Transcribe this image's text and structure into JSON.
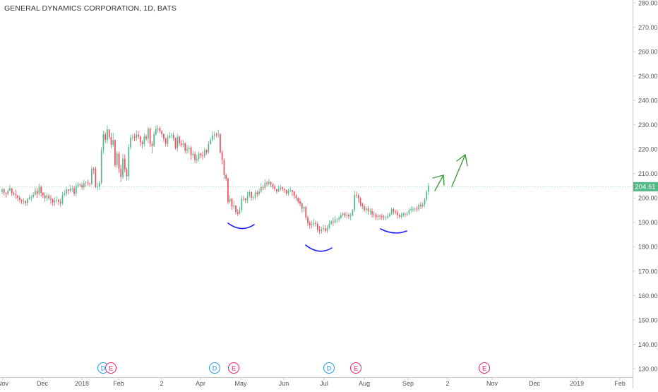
{
  "chart_data": {
    "type": "candlestick",
    "title": "GENERAL DYNAMICS CORPORATION, 1D, BATS",
    "ylim": [
      125,
      280
    ],
    "y_ticks": [
      "280.00",
      "270.00",
      "260.00",
      "250.00",
      "240.00",
      "230.00",
      "220.00",
      "210.00",
      "200.00",
      "190.00",
      "180.00",
      "170.00",
      "160.00",
      "150.00",
      "140.00",
      "130.00"
    ],
    "x_ticks": [
      "Nov",
      "Dec",
      "2018",
      "Feb",
      "2",
      "Apr",
      "May",
      "Jun",
      "Jul",
      "Aug",
      "Sep",
      "2",
      "Nov",
      "Dec",
      "2019",
      "Feb"
    ],
    "last_price": "204.61",
    "grid": false,
    "colors": {
      "up": "#53b987",
      "down": "#eb4d5c",
      "annotation_curve": "#1a1aff",
      "annotation_arrow": "#3d9b3d",
      "price_tag": "#53b987"
    },
    "series": [
      {
        "close": [
          203.5,
          202.0,
          201.6,
          203.0,
          204.0,
          202.0,
          201.5,
          201.1,
          200.1,
          199.2,
          198.7,
          198.7,
          197.9,
          199.5,
          200.2,
          200.4,
          201.3,
          202.9,
          201.6,
          204.5,
          202.1,
          201.1,
          199.9,
          201.0,
          199.8,
          199.4,
          198.2,
          198.9,
          199.2,
          198.4,
          197.8,
          201.1,
          201.7,
          203.5,
          202.9,
          203.9,
          203.9,
          201.8,
          204.9,
          205.6,
          205.3,
          204.3,
          206.0,
          206.3,
          206.0,
          205.8,
          212.0,
          211.9,
          204.4,
          204.7,
          206.2,
          219.7,
          226.1,
          223.8,
          228.1,
          225.0,
          221.8,
          223.8,
          213.5,
          218.2,
          212.0,
          208.6,
          216.1,
          211.7,
          208.8,
          220.8,
          224.8,
          225.0,
          224.7,
          226.0,
          225.1,
          222.9,
          222.1,
          225.2,
          224.3,
          228.4,
          222.2,
          221.3,
          226.1,
          228.2,
          228.6,
          227.4,
          226.2,
          224.3,
          222.2,
          224.9,
          225.6,
          225.8,
          224.5,
          220.5,
          225.1,
          222.4,
          221.7,
          222.4,
          219.4,
          220.0,
          220.6,
          217.5,
          218.1,
          215.5,
          216.0,
          218.2,
          217.5,
          217.2,
          219.6,
          218.8,
          222.1,
          223.8,
          225.6,
          226.0,
          225.8,
          226.1,
          218.7,
          215.6,
          209.3,
          207.9,
          198.3,
          199.6,
          196.5,
          196.9,
          194.2,
          193.5,
          195.1,
          199.8,
          199.6,
          199.1,
          200.8,
          202.4,
          200.1,
          200.2,
          202.2,
          201.6,
          202.6,
          204.5,
          204.1,
          206.2,
          205.9,
          206.6,
          205.5,
          204.6,
          203.7,
          202.7,
          203.8,
          204.3,
          203.7,
          203.3,
          201.8,
          203.1,
          203.2,
          202.6,
          201.0,
          200.0,
          198.6,
          197.7,
          195.6,
          196.3,
          191.9,
          189.8,
          188.8,
          189.2,
          189.8,
          189.4,
          186.9,
          186.5,
          187.1,
          187.6,
          186.5,
          187.8,
          189.5,
          190.3,
          190.0,
          191.2,
          191.3,
          191.9,
          193.0,
          193.6,
          192.7,
          193.1,
          192.5,
          192.7,
          195.1,
          201.2,
          201.1,
          199.9,
          197.8,
          196.6,
          195.0,
          195.7,
          194.6,
          194.6,
          193.3,
          193.1,
          192.2,
          192.7,
          192.6,
          192.2,
          191.9,
          191.9,
          192.5,
          193.3,
          195.4,
          194.4,
          194.1,
          193.0,
          192.3,
          192.9,
          193.5,
          193.2,
          193.5,
          195.1,
          195.5,
          195.5,
          195.6,
          195.3,
          197.2,
          196.5,
          197.3,
          199.4,
          202.5,
          205.0
        ],
        "high": [
          204.0,
          204.1,
          202.3,
          204.0,
          205.4,
          202.9,
          202.6,
          203.4,
          201.1,
          200.9,
          199.5,
          199.9,
          199.2,
          200.1,
          201.2,
          201.1,
          202.4,
          204.5,
          204.0,
          205.9,
          205.1,
          202.4,
          202.2,
          202.0,
          201.7,
          201.2,
          199.8,
          200.3,
          200.8,
          199.8,
          199.6,
          202.5,
          203.0,
          204.6,
          203.6,
          205.4,
          205.1,
          204.9,
          206.3,
          206.5,
          206.1,
          206.3,
          207.4,
          207.0,
          207.4,
          206.3,
          213.0,
          212.6,
          212.9,
          206.3,
          207.2,
          220.9,
          227.6,
          227.0,
          229.7,
          228.0,
          226.7,
          226.8,
          223.9,
          219.2,
          219.0,
          213.6,
          218.1,
          217.9,
          212.5,
          222.0,
          226.0,
          226.1,
          226.5,
          227.7,
          227.5,
          225.6,
          223.6,
          226.4,
          226.0,
          229.2,
          228.9,
          223.3,
          227.3,
          229.8,
          229.9,
          229.3,
          227.9,
          226.5,
          224.8,
          225.9,
          227.1,
          226.7,
          226.9,
          224.8,
          226.3,
          225.6,
          223.8,
          223.8,
          222.9,
          221.7,
          221.6,
          221.2,
          219.3,
          219.1,
          217.7,
          219.1,
          218.5,
          219.0,
          220.6,
          220.0,
          223.3,
          224.8,
          227.4,
          227.2,
          226.8,
          228.0,
          226.6,
          219.5,
          216.2,
          210.0,
          208.4,
          201.1,
          200.0,
          198.8,
          195.6,
          195.3,
          196.3,
          201.1,
          200.9,
          200.1,
          202.6,
          203.2,
          202.7,
          200.9,
          203.3,
          203.1,
          204.0,
          206.1,
          205.2,
          207.7,
          207.0,
          207.8,
          206.8,
          206.0,
          205.6,
          203.6,
          205.0,
          205.4,
          204.7,
          204.0,
          203.5,
          203.8,
          204.6,
          203.3,
          202.8,
          201.6,
          200.3,
          199.8,
          198.3,
          196.7,
          196.8,
          192.8,
          190.5,
          190.6,
          191.4,
          190.7,
          190.3,
          188.5,
          188.2,
          189.1,
          188.8,
          188.8,
          190.9,
          190.8,
          192.0,
          192.6,
          191.7,
          192.5,
          194.1,
          194.3,
          194.2,
          194.3,
          193.9,
          193.9,
          195.4,
          203.0,
          202.6,
          201.8,
          200.3,
          198.2,
          197.5,
          196.4,
          196.7,
          195.7,
          195.8,
          194.5,
          193.9,
          193.5,
          193.2,
          193.5,
          193.1,
          192.8,
          193.7,
          194.1,
          196.0,
          195.9,
          195.2,
          195.1,
          193.6,
          194.0,
          194.2,
          194.1,
          194.4,
          195.8,
          196.6,
          196.4,
          196.2,
          196.6,
          197.9,
          198.3,
          198.1,
          200.1,
          203.2,
          206.2
        ],
        "low": [
          201.6,
          201.0,
          200.2,
          200.9,
          202.7,
          200.8,
          200.8,
          199.6,
          198.6,
          198.1,
          197.5,
          197.3,
          196.8,
          196.8,
          199.2,
          198.7,
          199.7,
          200.9,
          200.0,
          201.0,
          200.6,
          199.9,
          198.4,
          198.8,
          199.0,
          197.5,
          196.8,
          196.8,
          197.8,
          197.0,
          196.4,
          197.1,
          200.8,
          200.7,
          201.4,
          202.2,
          202.3,
          200.8,
          200.7,
          204.2,
          204.5,
          203.3,
          203.3,
          204.7,
          205.1,
          204.6,
          205.1,
          209.8,
          204.1,
          203.1,
          203.2,
          205.5,
          218.1,
          222.6,
          222.4,
          224.1,
          220.3,
          221.0,
          212.6,
          212.4,
          210.3,
          206.6,
          207.8,
          210.5,
          207.2,
          207.2,
          219.8,
          223.6,
          223.2,
          223.5,
          224.2,
          221.3,
          220.3,
          221.1,
          223.5,
          222.5,
          221.0,
          218.3,
          220.9,
          225.5,
          226.8,
          226.6,
          224.8,
          223.0,
          221.1,
          221.0,
          224.2,
          224.6,
          223.4,
          219.8,
          219.1,
          221.2,
          220.8,
          220.7,
          218.3,
          218.0,
          218.4,
          215.7,
          216.5,
          214.2,
          214.2,
          214.9,
          216.4,
          215.7,
          216.3,
          217.7,
          218.1,
          221.8,
          223.1,
          223.9,
          224.9,
          224.7,
          218.2,
          213.8,
          207.7,
          206.9,
          197.5,
          197.7,
          195.1,
          195.3,
          193.2,
          192.6,
          193.3,
          194.1,
          198.7,
          198.0,
          197.9,
          200.2,
          198.9,
          199.0,
          199.2,
          200.5,
          200.9,
          202.0,
          203.2,
          203.3,
          204.6,
          205.1,
          204.5,
          203.6,
          202.7,
          201.8,
          202.3,
          203.0,
          202.7,
          202.1,
          200.9,
          200.9,
          202.3,
          200.7,
          199.6,
          198.9,
          197.6,
          196.6,
          194.0,
          194.3,
          190.9,
          188.6,
          187.3,
          187.4,
          188.2,
          188.3,
          185.9,
          185.2,
          185.4,
          186.2,
          185.8,
          185.6,
          187.2,
          188.9,
          188.6,
          189.5,
          189.8,
          190.2,
          191.2,
          192.3,
          191.9,
          191.6,
          191.4,
          190.8,
          192.5,
          194.3,
          200.0,
          198.1,
          196.5,
          195.4,
          194.2,
          193.7,
          193.2,
          193.0,
          192.0,
          191.9,
          190.9,
          190.8,
          191.1,
          191.0,
          190.9,
          190.8,
          191.3,
          192.0,
          192.9,
          193.3,
          193.3,
          191.5,
          191.6,
          191.5,
          192.2,
          192.1,
          192.5,
          193.0,
          194.1,
          194.3,
          194.5,
          194.4,
          194.5,
          195.4,
          196.1,
          196.2,
          198.6,
          201.3
        ],
        "open": [
          202.5,
          203.5,
          202.0,
          201.6,
          203.0,
          204.0,
          202.0,
          201.5,
          201.1,
          200.1,
          199.2,
          198.7,
          198.7,
          197.9,
          199.5,
          200.2,
          200.4,
          201.3,
          202.9,
          201.6,
          204.5,
          202.1,
          201.1,
          199.9,
          201.0,
          199.8,
          199.4,
          198.2,
          198.9,
          199.2,
          198.4,
          197.8,
          201.1,
          201.7,
          203.5,
          202.9,
          203.9,
          203.9,
          201.8,
          204.9,
          205.6,
          205.3,
          204.3,
          206.0,
          206.3,
          206.0,
          205.8,
          212.0,
          211.9,
          204.4,
          204.7,
          206.2,
          219.7,
          226.1,
          223.8,
          228.1,
          225.0,
          221.8,
          223.8,
          213.5,
          218.2,
          212.0,
          208.6,
          216.1,
          211.7,
          208.8,
          220.8,
          224.8,
          225.0,
          224.7,
          226.0,
          225.1,
          222.9,
          222.1,
          225.2,
          224.3,
          228.4,
          222.2,
          221.3,
          226.1,
          228.2,
          228.6,
          227.4,
          226.2,
          224.3,
          222.2,
          224.9,
          225.6,
          225.8,
          224.5,
          220.5,
          225.1,
          222.4,
          221.7,
          222.4,
          219.4,
          220.0,
          220.6,
          217.5,
          218.1,
          215.5,
          216.0,
          218.2,
          217.5,
          217.2,
          219.6,
          218.8,
          222.1,
          223.8,
          225.6,
          226.0,
          225.8,
          226.1,
          218.7,
          215.6,
          209.3,
          207.9,
          198.3,
          199.6,
          196.5,
          196.9,
          194.2,
          193.5,
          195.1,
          199.8,
          199.6,
          199.1,
          200.8,
          202.4,
          200.1,
          200.2,
          202.2,
          201.6,
          202.6,
          204.5,
          204.1,
          206.2,
          205.9,
          206.6,
          205.5,
          204.6,
          203.7,
          202.7,
          203.8,
          204.3,
          203.7,
          203.3,
          201.8,
          203.1,
          203.2,
          202.6,
          201.0,
          200.0,
          198.6,
          197.7,
          195.6,
          196.3,
          191.9,
          189.8,
          188.8,
          189.2,
          189.8,
          189.4,
          186.9,
          186.5,
          187.1,
          187.6,
          186.5,
          187.8,
          189.5,
          190.3,
          190.0,
          191.2,
          191.3,
          191.9,
          193.0,
          193.6,
          192.7,
          193.1,
          192.5,
          192.7,
          195.1,
          201.2,
          201.1,
          199.9,
          197.8,
          196.6,
          195.0,
          195.7,
          194.6,
          194.6,
          193.3,
          193.1,
          192.2,
          192.7,
          192.6,
          192.2,
          191.9,
          191.9,
          192.5,
          193.3,
          195.4,
          194.4,
          194.1,
          193.0,
          192.3,
          192.9,
          193.5,
          193.2,
          193.5,
          195.1,
          195.5,
          195.5,
          195.6,
          195.3,
          197.2,
          196.5,
          197.3,
          199.4,
          202.5
        ]
      }
    ],
    "events": [
      {
        "label": "D",
        "kind": "dividend"
      },
      {
        "label": "E",
        "kind": "earnings"
      },
      {
        "label": "D",
        "kind": "dividend"
      },
      {
        "label": "E",
        "kind": "earnings"
      },
      {
        "label": "D",
        "kind": "dividend"
      },
      {
        "label": "E",
        "kind": "earnings"
      },
      {
        "label": "E",
        "kind": "earnings"
      }
    ]
  }
}
